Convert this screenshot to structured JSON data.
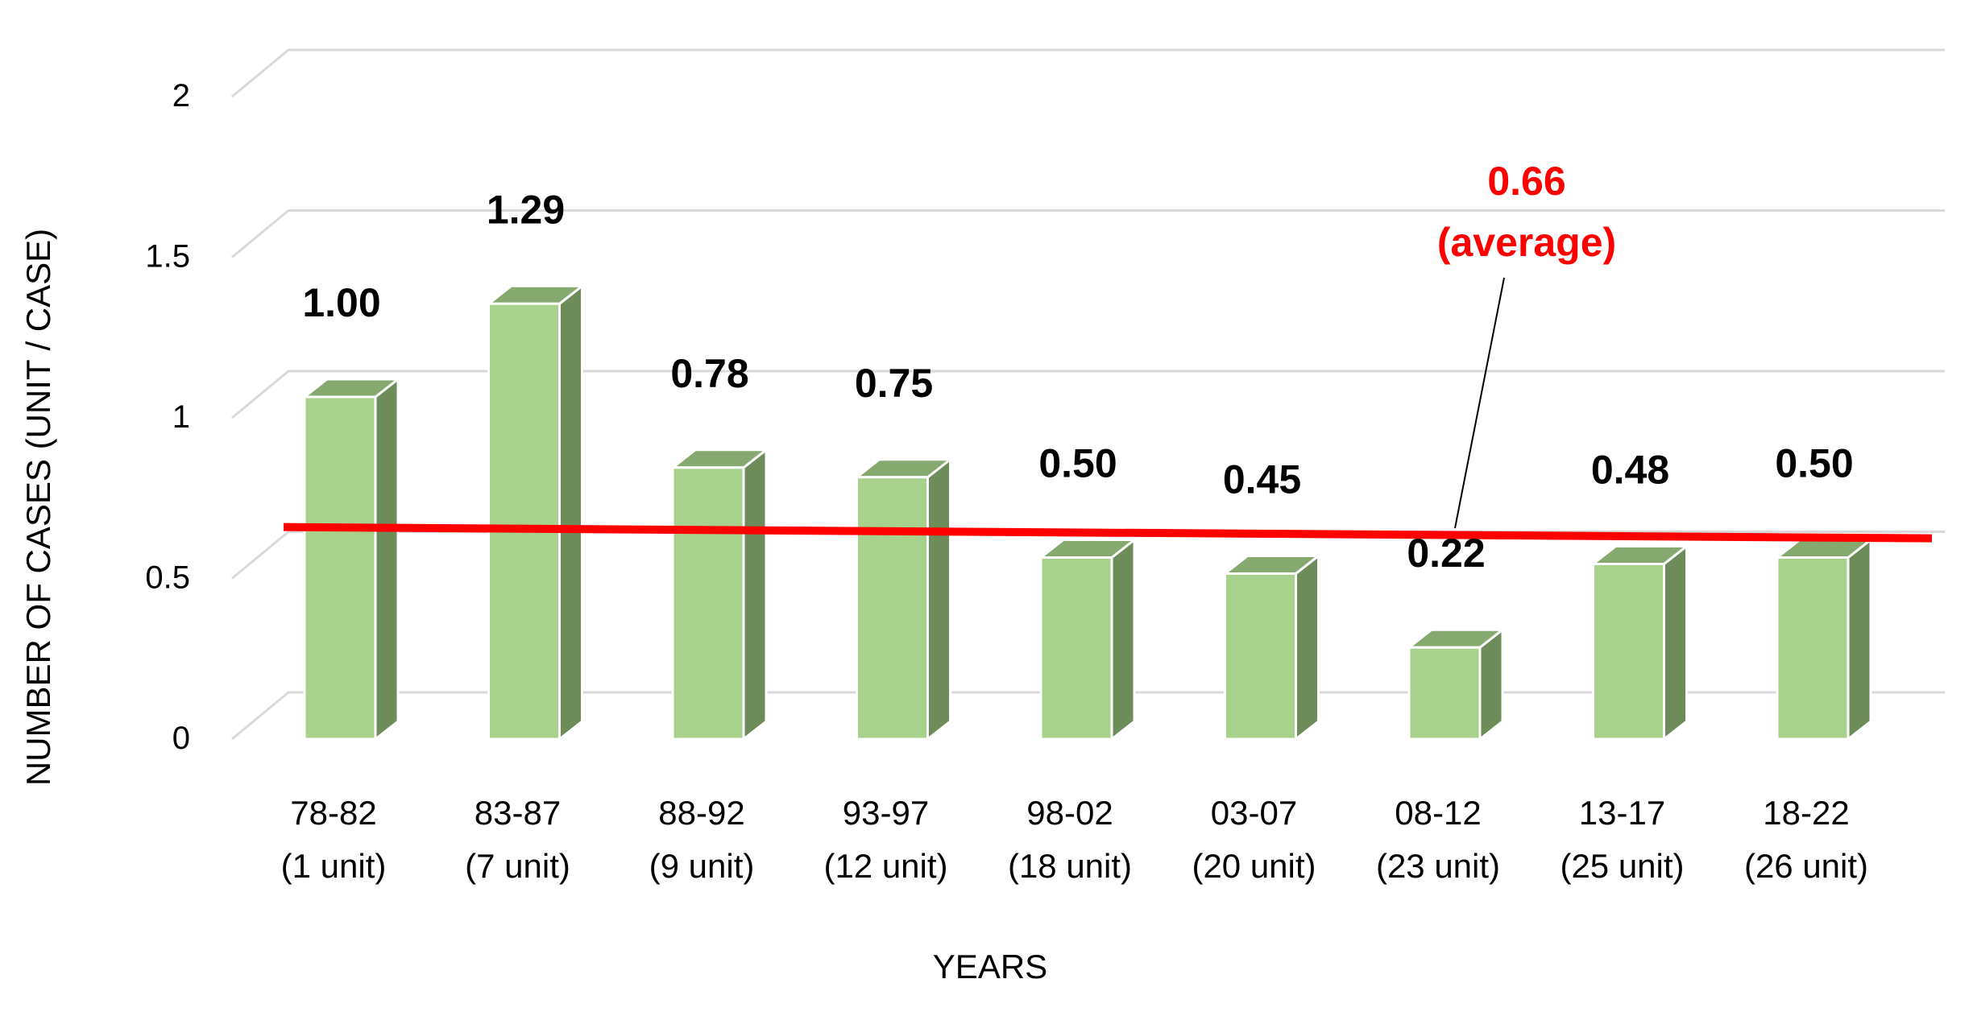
{
  "chart_data": {
    "type": "bar",
    "title": "",
    "xlabel": "YEARS",
    "ylabel": "NUMBER OF CASES (UNIT / CASE)",
    "ylim": [
      0,
      2
    ],
    "yticks": [
      "0",
      "0.5",
      "1",
      "1.5",
      "2"
    ],
    "grid": true,
    "style": "3d-column",
    "categories": [
      [
        "78-82",
        "(1 unit)"
      ],
      [
        "83-87",
        "(7 unit)"
      ],
      [
        "88-92",
        "(9 unit)"
      ],
      [
        "93-97",
        "(12 unit)"
      ],
      [
        "98-02",
        "(18 unit)"
      ],
      [
        "03-07",
        "(20 unit)"
      ],
      [
        "08-12",
        "(23 unit)"
      ],
      [
        "13-17",
        "(25 unit)"
      ],
      [
        "18-22",
        "(26 unit)"
      ]
    ],
    "values": [
      1.0,
      1.29,
      0.78,
      0.75,
      0.5,
      0.45,
      0.22,
      0.48,
      0.5
    ],
    "data_labels": [
      "1.00",
      "1.29",
      "0.78",
      "0.75",
      "0.50",
      "0.45",
      "0.22",
      "0.48",
      "0.50"
    ],
    "average": {
      "value": 0.66,
      "label_value": "0.66",
      "label_text": "(average)",
      "color": "#ff0000"
    },
    "colors": {
      "bar_front": "#a9d18e",
      "bar_side": "#6e8b5a",
      "bar_top": "#86a96f"
    }
  }
}
